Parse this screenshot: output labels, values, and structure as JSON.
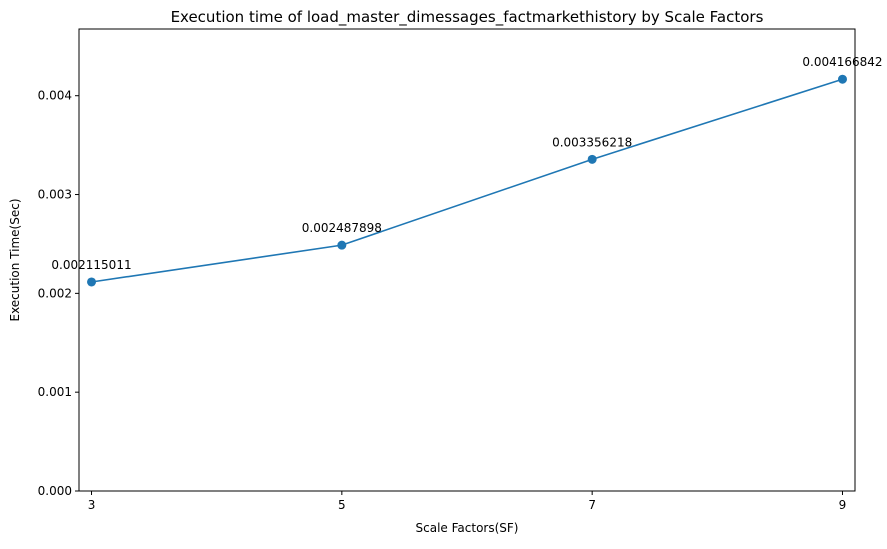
{
  "chart_data": {
    "type": "line",
    "title": "Execution time of load_master_dimessages_factmarkethistory by Scale Factors",
    "xlabel": "Scale Factors(SF)",
    "ylabel": "Execution Time(Sec)",
    "x": [
      3,
      5,
      7,
      9
    ],
    "x_ticks": [
      "3",
      "5",
      "7",
      "9"
    ],
    "y_ticks": [
      "0.000",
      "0.001",
      "0.002",
      "0.003",
      "0.004"
    ],
    "y_tick_values": [
      0.0,
      0.001,
      0.002,
      0.003,
      0.004
    ],
    "xlim": [
      2.9,
      9.1
    ],
    "ylim": [
      0.0,
      0.004675
    ],
    "series": [
      {
        "values": [
          0.002115011,
          0.002487898,
          0.003356218,
          0.004166842
        ],
        "labels": [
          "0.002115011",
          "0.002487898",
          "0.003356218",
          "0.004166842"
        ],
        "color": "#1f77b4",
        "marker": "circle"
      }
    ],
    "grid": false,
    "legend": "none"
  }
}
